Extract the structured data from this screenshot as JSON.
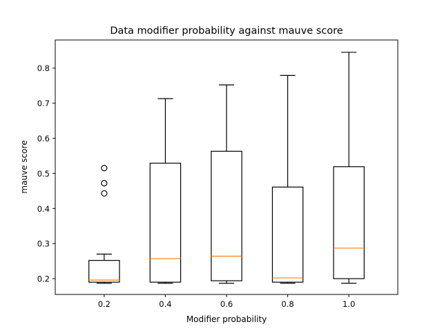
{
  "chart_data": {
    "type": "box",
    "title": "Data modifier probability against mauve score",
    "xlabel": "Modifier probability",
    "ylabel": "mauve score",
    "ylim": [
      0.155,
      0.88
    ],
    "yticks": [
      0.2,
      0.3,
      0.4,
      0.5,
      0.6,
      0.7,
      0.8
    ],
    "ytick_labels": [
      "0.2",
      "0.3",
      "0.4",
      "0.5",
      "0.6",
      "0.7",
      "0.8"
    ],
    "categories": [
      "0.2",
      "0.4",
      "0.6",
      "0.8",
      "1.0"
    ],
    "boxes": [
      {
        "category": "0.2",
        "whisker_low": 0.187,
        "q1": 0.19,
        "median": 0.196,
        "q3": 0.252,
        "whisker_high": 0.27,
        "outliers": [
          0.443,
          0.472,
          0.515
        ]
      },
      {
        "category": "0.4",
        "whisker_low": 0.187,
        "q1": 0.19,
        "median": 0.257,
        "q3": 0.529,
        "whisker_high": 0.713,
        "outliers": []
      },
      {
        "category": "0.6",
        "whisker_low": 0.187,
        "q1": 0.194,
        "median": 0.264,
        "q3": 0.563,
        "whisker_high": 0.752,
        "outliers": []
      },
      {
        "category": "0.8",
        "whisker_low": 0.187,
        "q1": 0.19,
        "median": 0.202,
        "q3": 0.461,
        "whisker_high": 0.779,
        "outliers": []
      },
      {
        "category": "1.0",
        "whisker_low": 0.187,
        "q1": 0.2,
        "median": 0.287,
        "q3": 0.519,
        "whisker_high": 0.845,
        "outliers": []
      }
    ],
    "colors": {
      "box": "#000000",
      "median": "#ff7f0e",
      "outlier": "#000000"
    },
    "grid": false
  }
}
